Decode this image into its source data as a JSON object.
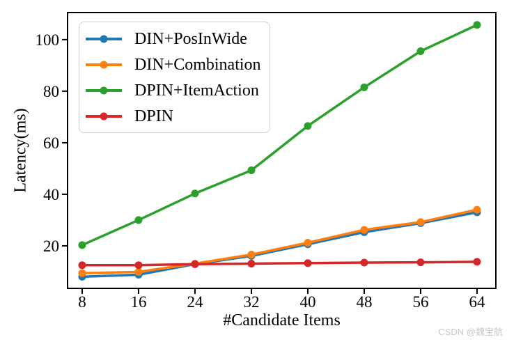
{
  "chart_data": {
    "type": "line",
    "title": "",
    "xlabel": "#Candidate Items",
    "ylabel": "Latency(ms)",
    "x": [
      8,
      16,
      24,
      32,
      40,
      48,
      56,
      64
    ],
    "x_ticks": [
      8,
      16,
      24,
      32,
      40,
      48,
      56,
      64
    ],
    "y_ticks": [
      20,
      40,
      60,
      80,
      100
    ],
    "xlim": [
      5.93,
      66.67
    ],
    "ylim": [
      3.5,
      110.5
    ],
    "grid": false,
    "legend_position": "upper-left",
    "frame_color": "#000000",
    "series": [
      {
        "name": "DIN+PosInWide",
        "color": "#1f77b4",
        "values": [
          8.0,
          8.8,
          12.9,
          16.1,
          20.6,
          25.3,
          28.8,
          33.0
        ]
      },
      {
        "name": "DIN+Combination",
        "color": "#ff7f0e",
        "values": [
          9.4,
          9.9,
          13.1,
          16.6,
          21.2,
          26.2,
          29.2,
          34.0
        ]
      },
      {
        "name": "DPIN+ItemAction",
        "color": "#2ca02c",
        "values": [
          20.3,
          30.0,
          40.3,
          49.3,
          66.5,
          81.5,
          95.5,
          105.7
        ]
      },
      {
        "name": "DPIN",
        "color": "#d62728",
        "values": [
          12.5,
          12.5,
          12.9,
          13.1,
          13.3,
          13.5,
          13.6,
          13.8
        ]
      }
    ]
  },
  "watermark": {
    "text": "CSDN @魏宝航",
    "color": "#c9c9c9"
  }
}
